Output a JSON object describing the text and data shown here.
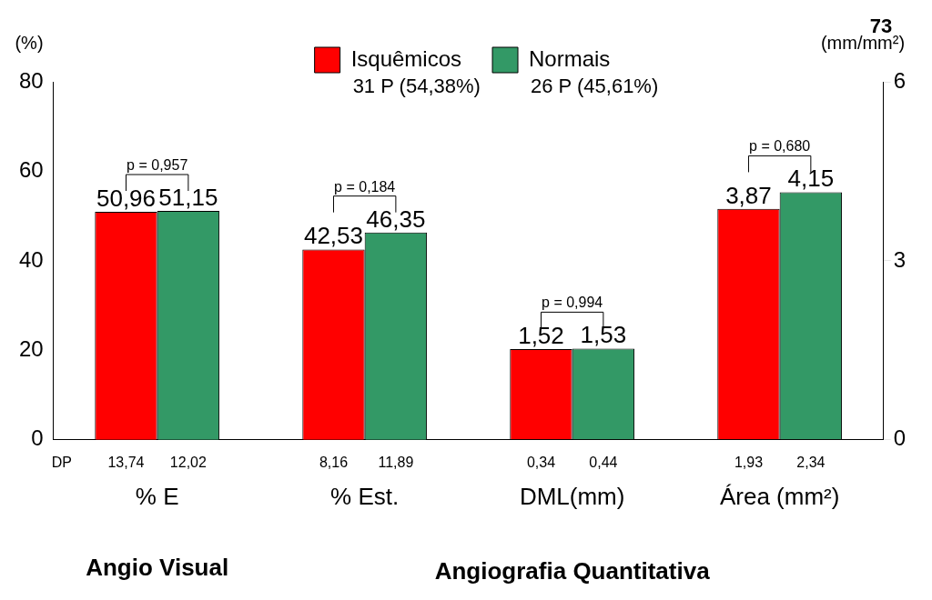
{
  "chart_data": {
    "type": "bar",
    "categories": [
      "% E",
      "% Est.",
      "DML(mm)",
      "Área (mm²)"
    ],
    "ylabel": "(%)",
    "y2label": "(mm/mm²)",
    "ylim": [
      0,
      80
    ],
    "yticks": [
      0,
      20,
      40,
      60,
      80
    ],
    "y2lim": [
      0,
      6
    ],
    "y2ticks": [
      0,
      3,
      6
    ],
    "grid": false,
    "legend": "top",
    "series": [
      {
        "name": "Isquêmicos",
        "color": "#ff0000",
        "values": [
          50.96,
          42.53,
          null,
          null
        ],
        "value_labels": [
          "50,96",
          "42,53",
          null,
          null
        ]
      },
      {
        "color": "#ff0000",
        "axis": "y2",
        "values": [
          null,
          null,
          1.52,
          3.87
        ],
        "value_labels": [
          null,
          null,
          "1,52",
          "3,87"
        ]
      },
      {
        "name": "Normais",
        "color": "#339966",
        "values": [
          51.15,
          46.35,
          null,
          null
        ],
        "value_labels": [
          "51,15",
          "46,35",
          null,
          null
        ]
      },
      {
        "color": "#339966",
        "axis": "y2",
        "values": [
          null,
          null,
          1.53,
          4.15
        ],
        "value_labels": [
          null,
          null,
          "1,53",
          "4,15"
        ]
      }
    ],
    "annotations": [
      "DP",
      "31 P (54,38%)",
      "26 P (45,61%)",
      "Angio Visual",
      "Angiografia Quantitativa",
      "73",
      "p = 0,957",
      "p = 0,184",
      "p = 0,994",
      "p = 0,680",
      "13,74",
      "12,02",
      "8,16",
      "11,89",
      "0,34",
      "0,44",
      "1,93",
      "2,34"
    ]
  }
}
